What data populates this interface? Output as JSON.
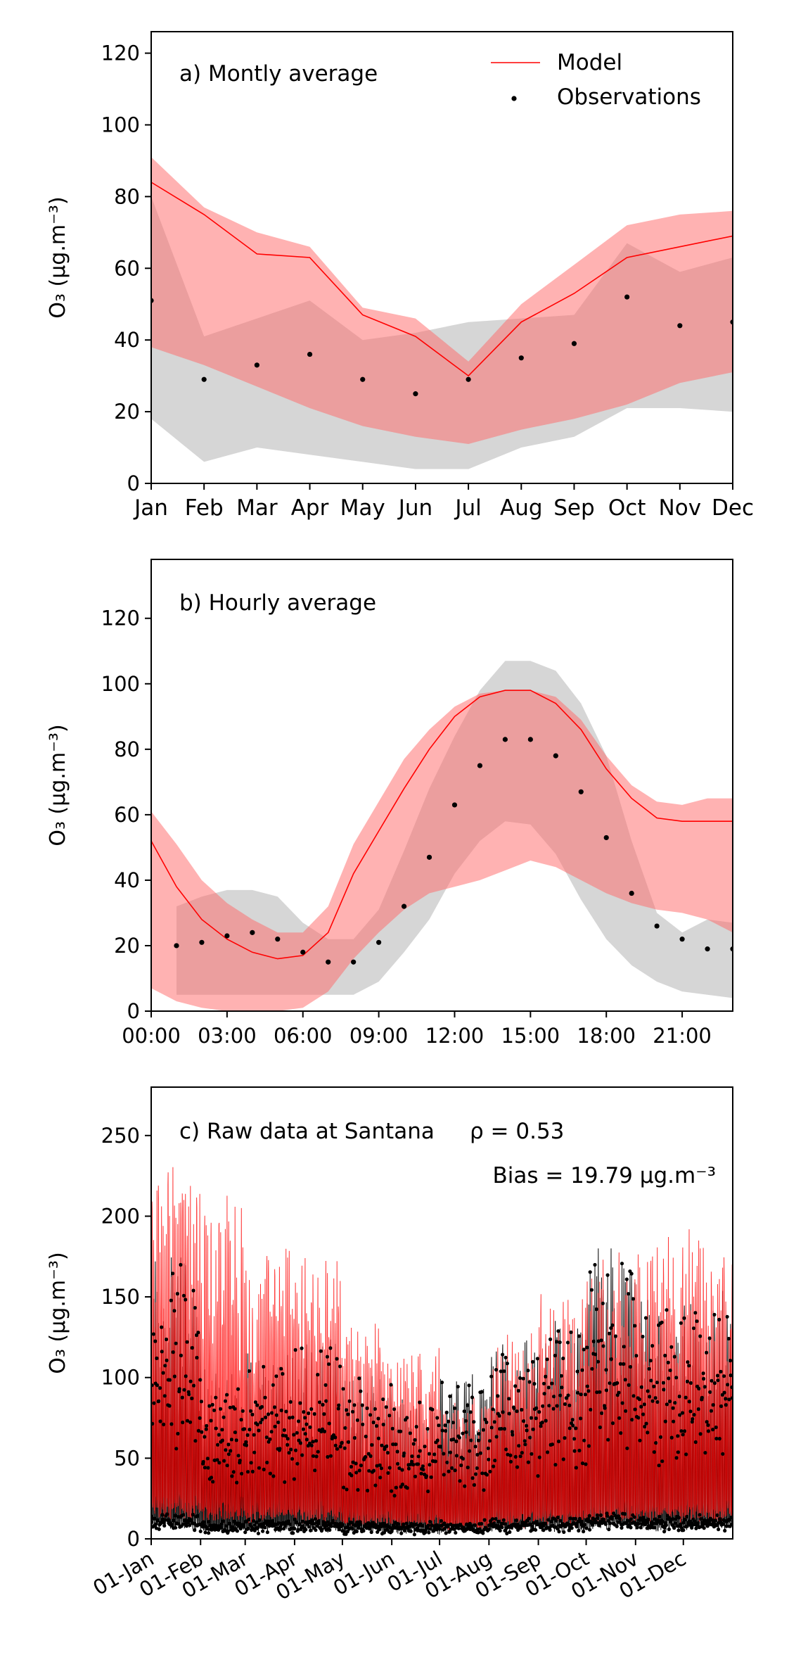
{
  "chart_data": [
    {
      "type": "line",
      "panel_title": "a) Montly average",
      "ylabel": "O₃ (μg.m⁻³)",
      "ylim": [
        0,
        126
      ],
      "yticks": [
        0,
        20,
        40,
        60,
        80,
        100,
        120
      ],
      "categories": [
        "Jan",
        "Feb",
        "Mar",
        "Apr",
        "May",
        "Jun",
        "Jul",
        "Aug",
        "Sep",
        "Oct",
        "Nov",
        "Dec"
      ],
      "legend": {
        "model": "Model",
        "observations": "Observations",
        "placement": "top-right"
      },
      "model": [
        84,
        75,
        64,
        63,
        47,
        41,
        30,
        45,
        53,
        63,
        66,
        69
      ],
      "model_upper": [
        91,
        77,
        70,
        66,
        49,
        46,
        34,
        50,
        61,
        72,
        75,
        76
      ],
      "model_lower": [
        38,
        33,
        27,
        21,
        16,
        13,
        11,
        15,
        18,
        22,
        28,
        31
      ],
      "obs": [
        51,
        29,
        33,
        36,
        29,
        25,
        29,
        35,
        39,
        52,
        44,
        45
      ],
      "obs_upper": [
        80,
        41,
        46,
        51,
        40,
        42,
        45,
        46,
        47,
        67,
        59,
        63
      ],
      "obs_lower": [
        18,
        6,
        10,
        8,
        6,
        4,
        4,
        10,
        13,
        21,
        21,
        20
      ]
    },
    {
      "type": "line",
      "panel_title": "b) Hourly average",
      "ylabel": "O₃ (μg.m⁻³)",
      "ylim": [
        0,
        138
      ],
      "yticks": [
        0,
        20,
        40,
        60,
        80,
        100,
        120
      ],
      "xtick_labels": [
        "00:00",
        "03:00",
        "06:00",
        "09:00",
        "12:00",
        "15:00",
        "18:00",
        "21:00"
      ],
      "xtick_hours": [
        0,
        3,
        6,
        9,
        12,
        15,
        18,
        21
      ],
      "x_hours": [
        0,
        1,
        2,
        3,
        4,
        5,
        6,
        7,
        8,
        9,
        10,
        11,
        12,
        13,
        14,
        15,
        16,
        17,
        18,
        19,
        20,
        21,
        22,
        23
      ],
      "model": [
        52,
        38,
        28,
        22,
        18,
        16,
        17,
        24,
        42,
        55,
        68,
        80,
        90,
        96,
        98,
        98,
        94,
        86,
        74,
        65,
        59,
        58,
        58,
        58
      ],
      "model_upper": [
        61,
        51,
        40,
        33,
        28,
        24,
        24,
        32,
        51,
        64,
        77,
        86,
        93,
        97,
        98,
        98,
        96,
        89,
        78,
        69,
        64,
        63,
        65,
        65
      ],
      "model_lower": [
        7,
        3,
        1,
        0,
        0,
        0,
        1,
        6,
        16,
        24,
        31,
        36,
        38,
        40,
        43,
        46,
        44,
        40,
        36,
        33,
        31,
        30,
        28,
        24
      ],
      "obs_hours": [
        1,
        2,
        3,
        4,
        5,
        6,
        7,
        8,
        9,
        10,
        11,
        12,
        13,
        14,
        15,
        16,
        17,
        18,
        19,
        20,
        21,
        22,
        23
      ],
      "obs": [
        20,
        21,
        23,
        24,
        22,
        18,
        15,
        15,
        21,
        32,
        47,
        63,
        75,
        83,
        83,
        78,
        67,
        53,
        36,
        26,
        22,
        19,
        19
      ],
      "obs_upper": [
        32,
        35,
        37,
        37,
        35,
        27,
        22,
        22,
        31,
        49,
        68,
        84,
        98,
        107,
        107,
        104,
        94,
        78,
        52,
        30,
        24,
        28,
        27
      ],
      "obs_lower": [
        5,
        5,
        5,
        5,
        5,
        5,
        5,
        5,
        9,
        18,
        28,
        42,
        52,
        58,
        57,
        48,
        34,
        22,
        14,
        9,
        6,
        5,
        4
      ]
    },
    {
      "type": "line",
      "panel_title": "c) Raw data at Santana",
      "corr_label": "ρ = 0.53",
      "bias_label": "Bias = 19.79 μg.m⁻³",
      "ylabel": "O₃ (μg.m⁻³)",
      "ylim": [
        0,
        280
      ],
      "yticks": [
        0,
        50,
        100,
        150,
        200,
        250
      ],
      "xlim_days": [
        0,
        365
      ],
      "xtick_labels": [
        "01-Jan",
        "01-Feb",
        "01-Mar",
        "01-Apr",
        "01-May",
        "01-Jun",
        "01-Jul",
        "01-Aug",
        "01-Sep",
        "01-Oct",
        "01-Nov",
        "01-Dec"
      ],
      "xtick_days": [
        0,
        31,
        59,
        90,
        120,
        151,
        181,
        212,
        243,
        273,
        304,
        334
      ],
      "month_model_mean": [
        84,
        75,
        64,
        63,
        47,
        41,
        30,
        45,
        53,
        63,
        66,
        69
      ],
      "month_obs_mean": [
        51,
        29,
        33,
        36,
        29,
        25,
        29,
        35,
        39,
        52,
        44,
        45
      ],
      "month_obs_peak": [
        175,
        120,
        150,
        175,
        130,
        110,
        135,
        150,
        178,
        180,
        178,
        170
      ]
    }
  ]
}
